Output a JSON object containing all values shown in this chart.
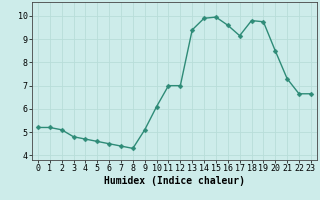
{
  "x": [
    0,
    1,
    2,
    3,
    4,
    5,
    6,
    7,
    8,
    9,
    10,
    11,
    12,
    13,
    14,
    15,
    16,
    17,
    18,
    19,
    20,
    21,
    22,
    23
  ],
  "y": [
    5.2,
    5.2,
    5.1,
    4.8,
    4.7,
    4.6,
    4.5,
    4.4,
    4.3,
    5.1,
    6.1,
    7.0,
    7.0,
    9.4,
    9.9,
    9.95,
    9.6,
    9.15,
    9.8,
    9.75,
    8.5,
    7.3,
    6.65,
    6.65
  ],
  "line_color": "#2e8b77",
  "marker": "D",
  "markersize": 2.5,
  "linewidth": 1.0,
  "bg_color": "#cdecea",
  "grid_color": "#b8ddd9",
  "xlabel": "Humidex (Indice chaleur)",
  "xlabel_fontsize": 7,
  "tick_fontsize": 6,
  "xlim": [
    -0.5,
    23.5
  ],
  "ylim": [
    3.8,
    10.6
  ],
  "yticks": [
    4,
    5,
    6,
    7,
    8,
    9,
    10
  ],
  "xticks": [
    0,
    1,
    2,
    3,
    4,
    5,
    6,
    7,
    8,
    9,
    10,
    11,
    12,
    13,
    14,
    15,
    16,
    17,
    18,
    19,
    20,
    21,
    22,
    23
  ]
}
